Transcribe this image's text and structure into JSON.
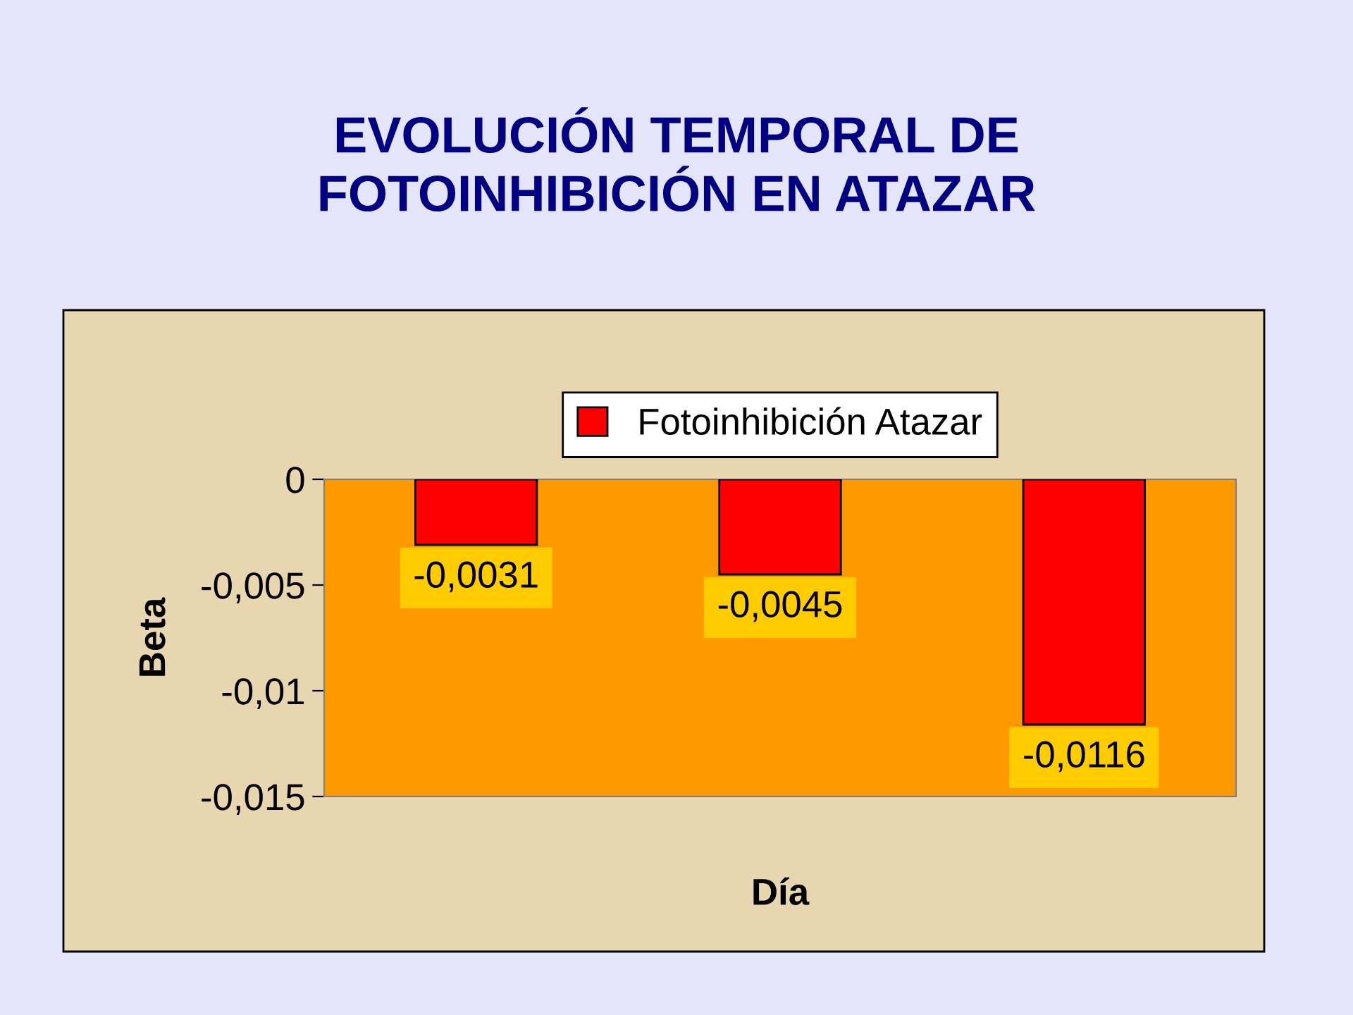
{
  "chart_data": {
    "type": "bar",
    "title": "EVOLUCIÓN TEMPORAL DE\nFOTOINHIBICIÓN EN ATAZAR",
    "xlabel": "Día",
    "ylabel": "Beta",
    "categories": [
      null,
      null,
      null
    ],
    "series": [
      {
        "name": "Fotoinhibición Atazar",
        "color": "#ff0000",
        "values": [
          -0.0031,
          -0.0045,
          -0.0116
        ],
        "value_labels": [
          "-0,0031",
          "-0,0045",
          "-0,0116"
        ]
      }
    ],
    "ylim": [
      -0.015,
      0
    ],
    "yticks": [
      {
        "value": 0,
        "label": "0"
      },
      {
        "value": -0.005,
        "label": "-0,005"
      },
      {
        "value": -0.01,
        "label": "-0,01"
      },
      {
        "value": -0.015,
        "label": "-0,015"
      }
    ],
    "grid": false,
    "legend": "top"
  }
}
